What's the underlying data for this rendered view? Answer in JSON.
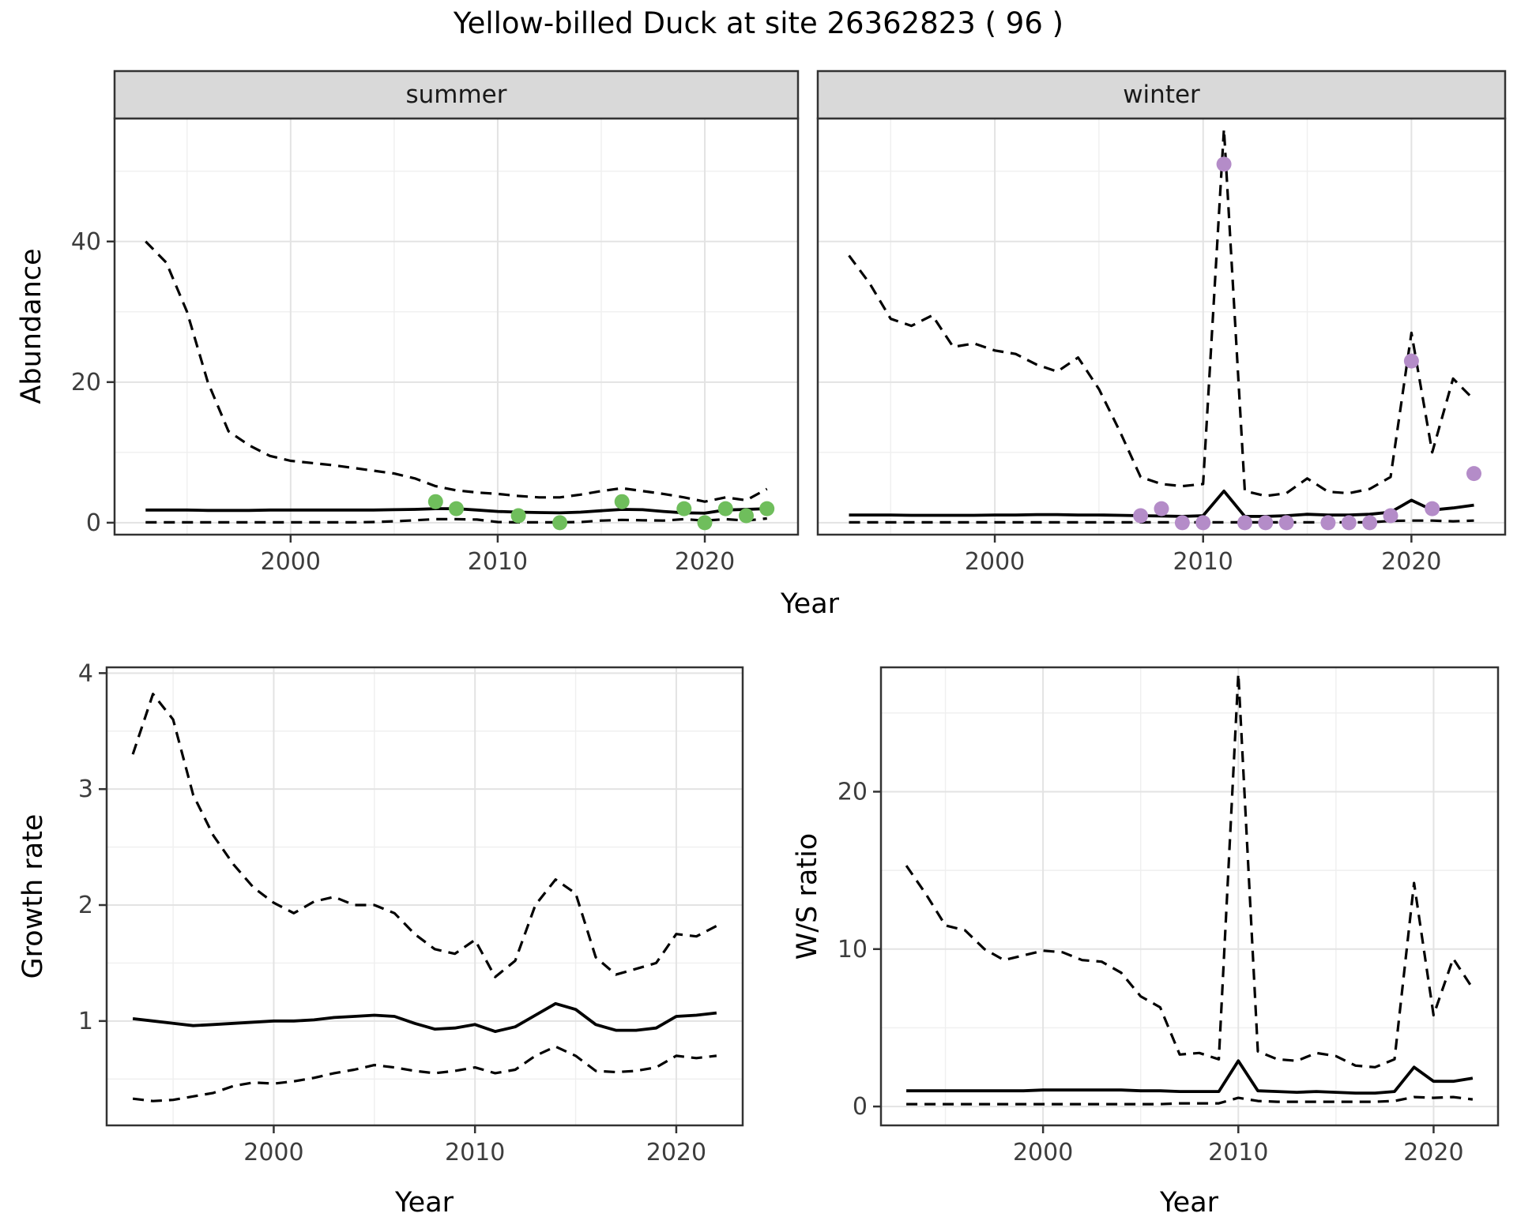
{
  "title": "Yellow-billed Duck at site 26362823 ( 96 )",
  "labels": {
    "year": "Year",
    "abundance": "Abundance",
    "growth": "Growth rate",
    "ws": "W/S ratio"
  },
  "facets": {
    "summer": "summer",
    "winter": "winter"
  },
  "colors": {
    "green": "#6fbe5c",
    "purple": "#b48cc8",
    "strip_bg": "#d9d9d9",
    "panel_border": "#333333",
    "grid_major": "#e3e3e3",
    "grid_minor": "#efefef",
    "line": "#000000",
    "tick_mark": "#333333",
    "tick_text": "#3d3d3d"
  },
  "chart_data": [
    {
      "id": "abundance-summer",
      "type": "line",
      "facet": "summer",
      "xlabel": "Year",
      "ylabel": "Abundance",
      "xlim": [
        1991.5,
        2024.5
      ],
      "ylim": [
        -1.7,
        57.5
      ],
      "xticks": [
        2000,
        2010,
        2020
      ],
      "xtick_labels": [
        "2000",
        "2010",
        "2020"
      ],
      "xminor": [
        1995,
        2005,
        2015
      ],
      "yticks": [
        0,
        20,
        40
      ],
      "ytick_labels": [
        "0",
        "20",
        "40"
      ],
      "yminor": [
        10,
        30,
        50
      ],
      "show_ytick_labels": true,
      "series": [
        {
          "name": "upper-95CI",
          "style": "dashed",
          "x": [
            1993,
            1994,
            1995,
            1996,
            1997,
            1998,
            1999,
            2000,
            2001,
            2002,
            2003,
            2004,
            2005,
            2006,
            2007,
            2008,
            2009,
            2010,
            2011,
            2012,
            2013,
            2014,
            2015,
            2016,
            2017,
            2018,
            2019,
            2020,
            2021,
            2022,
            2023
          ],
          "y": [
            40,
            37,
            30,
            20,
            13,
            11,
            9.5,
            8.8,
            8.5,
            8.2,
            7.8,
            7.4,
            7,
            6.3,
            5.2,
            4.6,
            4.3,
            4.1,
            3.8,
            3.6,
            3.6,
            4,
            4.5,
            4.9,
            4.5,
            4.1,
            3.6,
            3,
            3.6,
            3.2,
            4.8
          ]
        },
        {
          "name": "median",
          "style": "solid",
          "x": [
            1993,
            1994,
            1995,
            1996,
            1997,
            1998,
            1999,
            2000,
            2001,
            2002,
            2003,
            2004,
            2005,
            2006,
            2007,
            2008,
            2009,
            2010,
            2011,
            2012,
            2013,
            2014,
            2015,
            2016,
            2017,
            2018,
            2019,
            2020,
            2021,
            2022,
            2023
          ],
          "y": [
            1.8,
            1.8,
            1.8,
            1.75,
            1.75,
            1.75,
            1.8,
            1.8,
            1.8,
            1.8,
            1.8,
            1.8,
            1.85,
            1.9,
            2,
            2,
            1.8,
            1.6,
            1.5,
            1.45,
            1.4,
            1.5,
            1.7,
            1.9,
            1.85,
            1.6,
            1.4,
            1.35,
            1.8,
            1.9,
            2
          ]
        },
        {
          "name": "lower-95CI",
          "style": "dashed",
          "x": [
            1993,
            1994,
            1995,
            1996,
            1997,
            1998,
            1999,
            2000,
            2001,
            2002,
            2003,
            2004,
            2005,
            2006,
            2007,
            2008,
            2009,
            2010,
            2011,
            2012,
            2013,
            2014,
            2015,
            2016,
            2017,
            2018,
            2019,
            2020,
            2021,
            2022,
            2023
          ],
          "y": [
            0.05,
            0.05,
            0.05,
            0.05,
            0.05,
            0.05,
            0.05,
            0.05,
            0.05,
            0.05,
            0.05,
            0.1,
            0.2,
            0.35,
            0.5,
            0.5,
            0.45,
            0.1,
            0.05,
            0.05,
            0.05,
            0.1,
            0.3,
            0.4,
            0.35,
            0.3,
            0.5,
            0.3,
            0.5,
            0.3,
            0.6
          ]
        }
      ],
      "points": {
        "name": "observed-counts-summer",
        "color": "green",
        "x": [
          2007,
          2008,
          2011,
          2013,
          2016,
          2019,
          2020,
          2021,
          2022,
          2023
        ],
        "y": [
          3,
          2,
          1,
          0,
          3,
          2,
          0,
          2,
          1,
          2
        ]
      }
    },
    {
      "id": "abundance-winter",
      "type": "line",
      "facet": "winter",
      "xlabel": "Year",
      "ylabel": "Abundance",
      "xlim": [
        1991.5,
        2024.5
      ],
      "ylim": [
        -1.7,
        57.5
      ],
      "xticks": [
        2000,
        2010,
        2020
      ],
      "xtick_labels": [
        "2000",
        "2010",
        "2020"
      ],
      "xminor": [
        1995,
        2005,
        2015
      ],
      "yticks": [
        0,
        20,
        40
      ],
      "ytick_labels": [
        "0",
        "20",
        "40"
      ],
      "yminor": [
        10,
        30,
        50
      ],
      "show_ytick_labels": false,
      "series": [
        {
          "name": "upper-95CI",
          "style": "dashed",
          "x": [
            1993,
            1994,
            1995,
            1996,
            1997,
            1998,
            1999,
            2000,
            2001,
            2002,
            2003,
            2004,
            2005,
            2006,
            2007,
            2008,
            2009,
            2010,
            2011,
            2012,
            2013,
            2014,
            2015,
            2016,
            2017,
            2018,
            2019,
            2020,
            2021,
            2022,
            2023
          ],
          "y": [
            38,
            34,
            29,
            28,
            29.5,
            25,
            25.5,
            24.5,
            24,
            22.5,
            21.5,
            23.5,
            19,
            13,
            6.5,
            5.5,
            5.2,
            5.5,
            56,
            4.5,
            3.8,
            4.2,
            6.3,
            4.4,
            4.2,
            4.8,
            6.5,
            27,
            10,
            20.5,
            17.5
          ]
        },
        {
          "name": "median",
          "style": "solid",
          "x": [
            1993,
            1994,
            1995,
            1996,
            1997,
            1998,
            1999,
            2000,
            2001,
            2002,
            2003,
            2004,
            2005,
            2006,
            2007,
            2008,
            2009,
            2010,
            2011,
            2012,
            2013,
            2014,
            2015,
            2016,
            2017,
            2018,
            2019,
            2020,
            2021,
            2022,
            2023
          ],
          "y": [
            1.1,
            1.1,
            1.1,
            1.05,
            1.05,
            1.05,
            1.05,
            1.1,
            1.1,
            1.15,
            1.15,
            1.1,
            1.1,
            1.05,
            1,
            0.95,
            0.9,
            1,
            4.5,
            0.9,
            0.9,
            1,
            1.2,
            1.1,
            1.1,
            1.2,
            1.5,
            3.2,
            1.8,
            2.1,
            2.5
          ]
        },
        {
          "name": "lower-95CI",
          "style": "dashed",
          "x": [
            1993,
            1994,
            1995,
            1996,
            1997,
            1998,
            1999,
            2000,
            2001,
            2002,
            2003,
            2004,
            2005,
            2006,
            2007,
            2008,
            2009,
            2010,
            2011,
            2012,
            2013,
            2014,
            2015,
            2016,
            2017,
            2018,
            2019,
            2020,
            2021,
            2022,
            2023
          ],
          "y": [
            0.05,
            0.05,
            0.05,
            0.05,
            0.05,
            0.05,
            0.05,
            0.05,
            0.05,
            0.05,
            0.05,
            0.05,
            0.05,
            0.05,
            0.05,
            0.05,
            0.05,
            0.05,
            0.05,
            0.05,
            0.05,
            0.05,
            0.05,
            0.05,
            0.05,
            0.05,
            0.25,
            0.3,
            0.3,
            0.2,
            0.3
          ]
        }
      ],
      "points": {
        "name": "observed-counts-winter",
        "color": "purple",
        "x": [
          2007,
          2008,
          2009,
          2010,
          2011,
          2012,
          2013,
          2014,
          2016,
          2017,
          2018,
          2019,
          2020,
          2021,
          2023
        ],
        "y": [
          1,
          2,
          0,
          0,
          51,
          0,
          0,
          0,
          0,
          0,
          0,
          1,
          23,
          2,
          7
        ]
      }
    },
    {
      "id": "growth-rate",
      "type": "line",
      "facet": null,
      "xlabel": "Year",
      "ylabel": "Growth rate",
      "xlim": [
        1991.7,
        2023.3
      ],
      "ylim": [
        0.1,
        4.05
      ],
      "xticks": [
        2000,
        2010,
        2020
      ],
      "xtick_labels": [
        "2000",
        "2010",
        "2020"
      ],
      "xminor": [
        1995,
        2005,
        2015
      ],
      "yticks": [
        1,
        2,
        3,
        4
      ],
      "ytick_labels": [
        "1",
        "2",
        "3",
        "4"
      ],
      "yminor": [
        0.5,
        1.5,
        2.5,
        3.5
      ],
      "show_ytick_labels": true,
      "series": [
        {
          "name": "upper-95CI",
          "style": "dashed",
          "x": [
            1993,
            1994,
            1995,
            1996,
            1997,
            1998,
            1999,
            2000,
            2001,
            2002,
            2003,
            2004,
            2005,
            2006,
            2007,
            2008,
            2009,
            2010,
            2011,
            2012,
            2013,
            2014,
            2015,
            2016,
            2017,
            2018,
            2019,
            2020,
            2021,
            2022
          ],
          "y": [
            3.3,
            3.82,
            3.6,
            2.95,
            2.6,
            2.35,
            2.15,
            2.02,
            1.93,
            2.03,
            2.07,
            2.0,
            2.0,
            1.93,
            1.75,
            1.62,
            1.58,
            1.7,
            1.38,
            1.52,
            2.0,
            2.22,
            2.1,
            1.55,
            1.4,
            1.45,
            1.5,
            1.75,
            1.73,
            1.82
          ]
        },
        {
          "name": "median",
          "style": "solid",
          "x": [
            1993,
            1994,
            1995,
            1996,
            1997,
            1998,
            1999,
            2000,
            2001,
            2002,
            2003,
            2004,
            2005,
            2006,
            2007,
            2008,
            2009,
            2010,
            2011,
            2012,
            2013,
            2014,
            2015,
            2016,
            2017,
            2018,
            2019,
            2020,
            2021,
            2022
          ],
          "y": [
            1.02,
            1.0,
            0.98,
            0.96,
            0.97,
            0.98,
            0.99,
            1.0,
            1.0,
            1.01,
            1.03,
            1.04,
            1.05,
            1.04,
            0.98,
            0.93,
            0.94,
            0.97,
            0.91,
            0.95,
            1.05,
            1.15,
            1.1,
            0.97,
            0.92,
            0.92,
            0.94,
            1.04,
            1.05,
            1.07
          ]
        },
        {
          "name": "lower-95CI",
          "style": "dashed",
          "x": [
            1993,
            1994,
            1995,
            1996,
            1997,
            1998,
            1999,
            2000,
            2001,
            2002,
            2003,
            2004,
            2005,
            2006,
            2007,
            2008,
            2009,
            2010,
            2011,
            2012,
            2013,
            2014,
            2015,
            2016,
            2017,
            2018,
            2019,
            2020,
            2021,
            2022
          ],
          "y": [
            0.33,
            0.31,
            0.32,
            0.35,
            0.38,
            0.44,
            0.47,
            0.46,
            0.48,
            0.51,
            0.55,
            0.58,
            0.62,
            0.6,
            0.57,
            0.55,
            0.57,
            0.6,
            0.55,
            0.58,
            0.7,
            0.78,
            0.7,
            0.57,
            0.56,
            0.57,
            0.6,
            0.7,
            0.68,
            0.7
          ]
        }
      ],
      "points": null
    },
    {
      "id": "ws-ratio",
      "type": "line",
      "facet": null,
      "xlabel": "Year",
      "ylabel": "W/S ratio",
      "xlim": [
        1991.7,
        2023.3
      ],
      "ylim": [
        -1.2,
        27.9
      ],
      "xticks": [
        2000,
        2010,
        2020
      ],
      "xtick_labels": [
        "2000",
        "2010",
        "2020"
      ],
      "xminor": [
        1995,
        2005,
        2015
      ],
      "yticks": [
        0,
        10,
        20
      ],
      "ytick_labels": [
        "0",
        "10",
        "20"
      ],
      "yminor": [
        5,
        15,
        25
      ],
      "show_ytick_labels": true,
      "series": [
        {
          "name": "upper-95CI",
          "style": "dashed",
          "x": [
            1993,
            1994,
            1995,
            1996,
            1997,
            1998,
            1999,
            2000,
            2001,
            2002,
            2003,
            2004,
            2005,
            2006,
            2007,
            2008,
            2009,
            2010,
            2011,
            2012,
            2013,
            2014,
            2015,
            2016,
            2017,
            2018,
            2019,
            2020,
            2021,
            2022
          ],
          "y": [
            15.3,
            13.5,
            11.5,
            11.2,
            10,
            9.3,
            9.6,
            9.9,
            9.8,
            9.3,
            9.2,
            8.5,
            7,
            6.3,
            3.3,
            3.4,
            3,
            27.5,
            3.5,
            3,
            2.9,
            3.4,
            3.2,
            2.6,
            2.5,
            3,
            14.2,
            5.8,
            9.4,
            7.5
          ]
        },
        {
          "name": "median",
          "style": "solid",
          "x": [
            1993,
            1994,
            1995,
            1996,
            1997,
            1998,
            1999,
            2000,
            2001,
            2002,
            2003,
            2004,
            2005,
            2006,
            2007,
            2008,
            2009,
            2010,
            2011,
            2012,
            2013,
            2014,
            2015,
            2016,
            2017,
            2018,
            2019,
            2020,
            2021,
            2022
          ],
          "y": [
            1,
            1,
            1,
            1,
            1,
            1,
            1,
            1.05,
            1.05,
            1.05,
            1.05,
            1.05,
            1,
            1,
            0.95,
            0.95,
            0.95,
            2.9,
            1,
            0.95,
            0.9,
            0.95,
            0.9,
            0.85,
            0.85,
            0.95,
            2.5,
            1.6,
            1.6,
            1.8
          ]
        },
        {
          "name": "lower-95CI",
          "style": "dashed",
          "x": [
            1993,
            1994,
            1995,
            1996,
            1997,
            1998,
            1999,
            2000,
            2001,
            2002,
            2003,
            2004,
            2005,
            2006,
            2007,
            2008,
            2009,
            2010,
            2011,
            2012,
            2013,
            2014,
            2015,
            2016,
            2017,
            2018,
            2019,
            2020,
            2021,
            2022
          ],
          "y": [
            0.15,
            0.15,
            0.15,
            0.15,
            0.15,
            0.15,
            0.15,
            0.15,
            0.15,
            0.15,
            0.15,
            0.15,
            0.15,
            0.15,
            0.2,
            0.2,
            0.2,
            0.55,
            0.35,
            0.3,
            0.3,
            0.3,
            0.3,
            0.3,
            0.3,
            0.35,
            0.6,
            0.55,
            0.6,
            0.45
          ]
        }
      ],
      "points": null
    }
  ]
}
